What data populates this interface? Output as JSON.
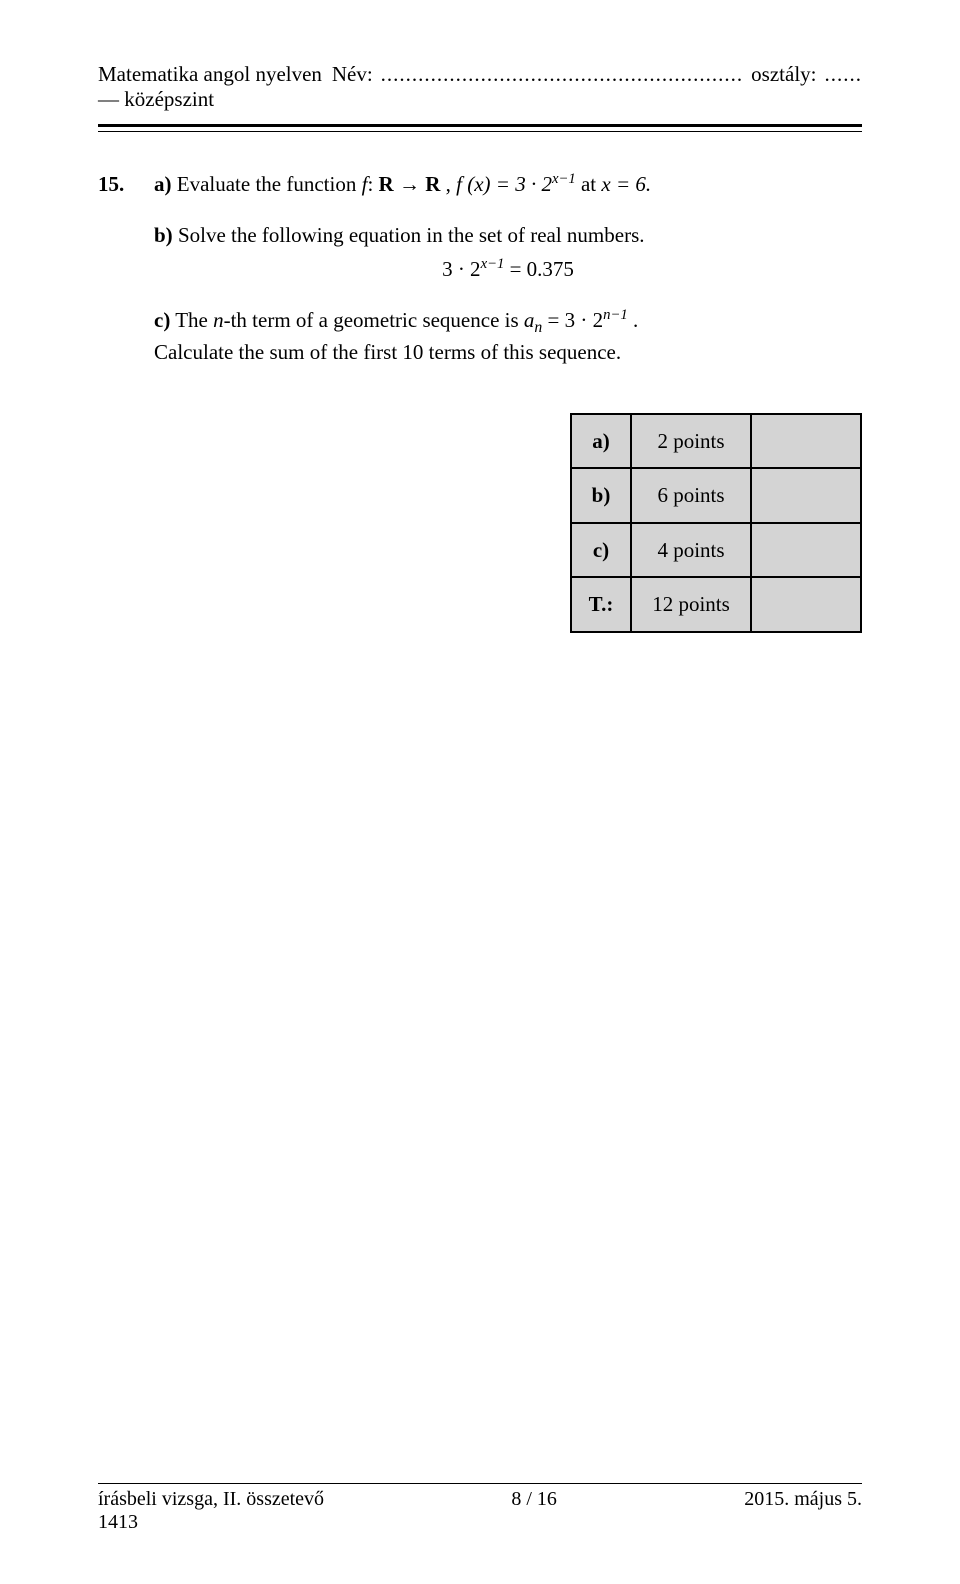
{
  "header": {
    "left": "Matematika angol nyelven — középszint",
    "name_label": "Név:",
    "name_dots": "..........................................................",
    "class_label": "osztály:",
    "class_dots": "......"
  },
  "question": {
    "number": "15.",
    "part_a": {
      "label": "a)",
      "pre": "Evaluate the function ",
      "f": "f",
      "colon": ": ",
      "R1": "R",
      "arrow": " → ",
      "R2": "R",
      "comma": " , ",
      "fx_lhs": "f (x) = 3 · 2",
      "fx_exp": "x−1",
      "at": " at ",
      "xeq": "x = 6."
    },
    "part_b": {
      "label": "b)",
      "text": "Solve the following equation in the set of real numbers.",
      "eq_lhs": "3 · 2",
      "eq_exp": "x−1",
      "eq_rhs": " = 0.375"
    },
    "part_c": {
      "label": "c)",
      "pre": "The ",
      "n": "n",
      "mid": "-th term of a geometric sequence is ",
      "a": "a",
      "sub": "n",
      "eq": " = 3 · 2",
      "exp": "n−1",
      "dot": " .",
      "line2": "Calculate the sum of the first 10 terms of this sequence."
    }
  },
  "points": {
    "rows": [
      {
        "label": "a)",
        "value": "2 points"
      },
      {
        "label": "b)",
        "value": "6 points"
      },
      {
        "label": "c)",
        "value": "4 points"
      },
      {
        "label": "T.:",
        "value": "12 points"
      }
    ]
  },
  "footer": {
    "left": "írásbeli vizsga, II. összetevő",
    "left_extra": "1413",
    "center": "8 / 16",
    "right": "2015. május 5."
  }
}
